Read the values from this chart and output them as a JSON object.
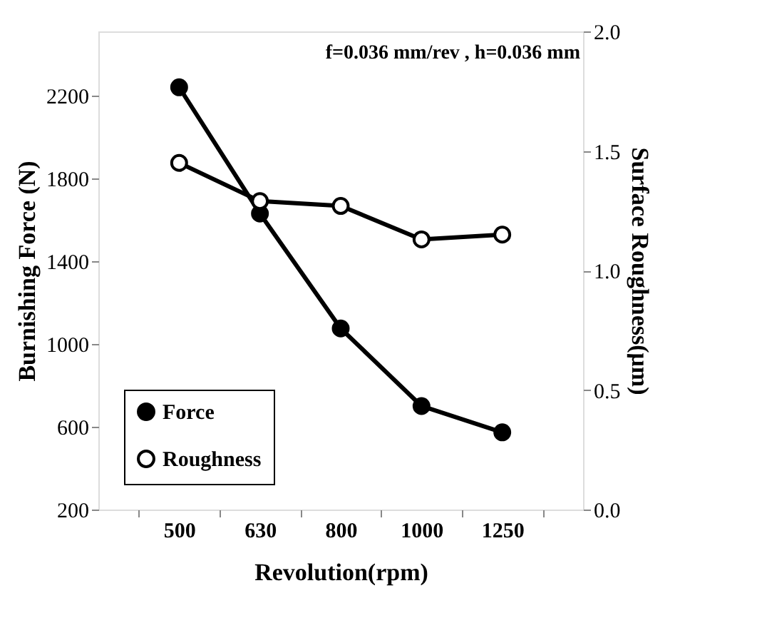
{
  "chart_data": {
    "type": "line",
    "xlabel": "Revolution(rpm)",
    "ylabel": "Burnishing Force (N)",
    "y2label": "Surface Roughness(μm)",
    "annotations": [
      "f=0.036 mm/rev , h=0.036 mm"
    ],
    "categories": [
      "500",
      "630",
      "800",
      "1000",
      "1250"
    ],
    "series": [
      {
        "name": "Force",
        "color": "#000000",
        "values": [
          2240,
          1630,
          1075,
          700,
          573
        ]
      },
      {
        "name": "Roughness",
        "color": "#000000",
        "axis": "y2",
        "values": [
          1.45,
          1.29,
          1.27,
          1.13,
          1.15
        ]
      }
    ],
    "ylim": [
      200,
      2510
    ],
    "yticks": [
      200,
      600,
      1000,
      1400,
      1800,
      2200
    ],
    "y2lim": [
      0,
      2.0
    ],
    "y2ticks": [
      {
        "value": 0,
        "label": "0.0"
      },
      {
        "value": 0.5,
        "label": "0.5"
      },
      {
        "value": 1,
        "label": "1.0"
      },
      {
        "value": 1.5,
        "label": "1.5"
      },
      {
        "value": 2,
        "label": "2.0"
      }
    ],
    "grid": false,
    "legend": "bottom left",
    "marker": "circle",
    "line_style": "solid"
  }
}
